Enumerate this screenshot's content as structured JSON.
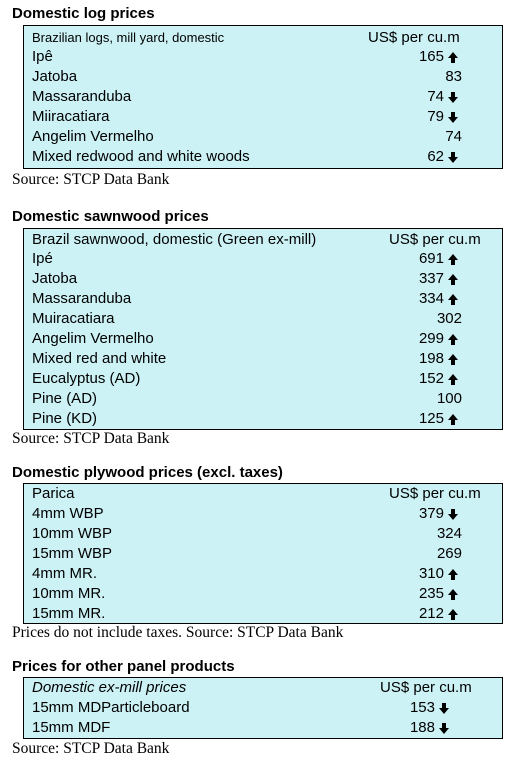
{
  "sections": [
    {
      "title": "Domestic log prices",
      "header_label": "Brazilian logs, mill yard, domestic",
      "header_price": "US$ per cu.m",
      "rows": [
        {
          "label": "Ipê",
          "price": "165",
          "trend": "up"
        },
        {
          "label": "Jatoba",
          "price": "83",
          "trend": "none"
        },
        {
          "label": "Massaranduba",
          "price": "74",
          "trend": "down"
        },
        {
          "label": "Miiracatiara",
          "price": "79",
          "trend": "down"
        },
        {
          "label": "Angelim Vermelho",
          "price": "74",
          "trend": "none"
        },
        {
          "label": "Mixed redwood and white woods",
          "price": "62",
          "trend": "down"
        }
      ],
      "source": "Source: STCP Data Bank"
    },
    {
      "title": "Domestic sawnwood prices",
      "header_label": "Brazil sawnwood, domestic (Green ex-mill)",
      "header_price": "US$ per cu.m",
      "rows": [
        {
          "label": "Ipé",
          "price": "691",
          "trend": "up"
        },
        {
          "label": "Jatoba",
          "price": "337",
          "trend": "up"
        },
        {
          "label": "Massaranduba",
          "price": "334",
          "trend": "up"
        },
        {
          "label": "Muiracatiara",
          "price": "302",
          "trend": "none"
        },
        {
          "label": "Angelim Vermelho",
          "price": "299",
          "trend": "up"
        },
        {
          "label": "Mixed red and white",
          "price": "198",
          "trend": "up"
        },
        {
          "label": "Eucalyptus (AD)",
          "price": "152",
          "trend": "up"
        },
        {
          "label": "Pine (AD)",
          "price": "100",
          "trend": "none"
        },
        {
          "label": "Pine (KD)",
          "price": "125",
          "trend": "up"
        }
      ],
      "source": "Source: STCP Data Bank"
    },
    {
      "title": "Domestic plywood prices (excl. taxes)",
      "header_label": "Parica",
      "header_price": "US$ per cu.m",
      "rows": [
        {
          "label": "4mm WBP",
          "price": "379",
          "trend": "down"
        },
        {
          "label": "10mm WBP",
          "price": "324",
          "trend": "none"
        },
        {
          "label": "15mm WBP",
          "price": "269",
          "trend": "none"
        },
        {
          "label": "4mm MR.",
          "price": "310",
          "trend": "up"
        },
        {
          "label": "10mm MR.",
          "price": "235",
          "trend": "up"
        },
        {
          "label": "15mm MR.",
          "price": "212",
          "trend": "up"
        }
      ],
      "source": "Prices do not include taxes. Source: STCP Data Bank"
    },
    {
      "title": "Prices for other panel products",
      "header_label": "Domestic ex-mill prices",
      "header_price": "US$ per cu.m",
      "rows": [
        {
          "label": "15mm MDParticleboard",
          "price": "153",
          "trend": "down"
        },
        {
          "label": "15mm MDF",
          "price": "188",
          "trend": "down"
        }
      ],
      "source": "Source: STCP Data Bank"
    }
  ],
  "icons": {
    "up": "arrow-up-icon",
    "down": "arrow-down-icon"
  }
}
